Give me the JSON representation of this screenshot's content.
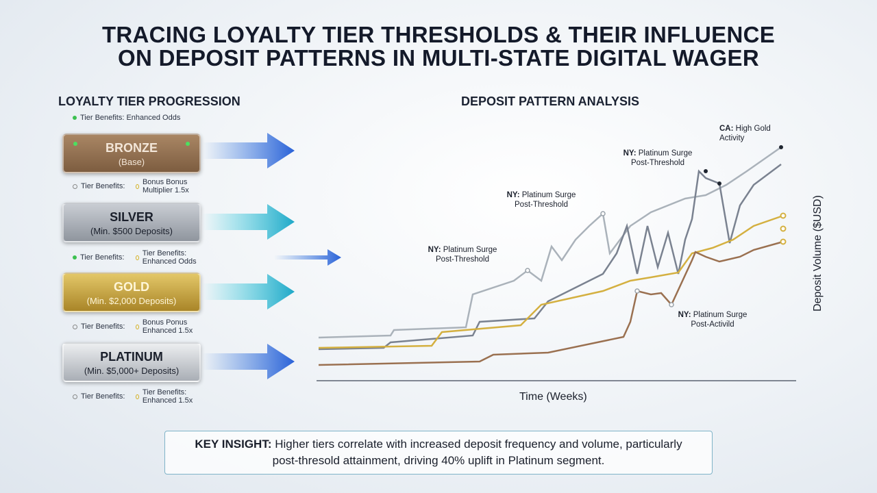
{
  "title": [
    "TRACING LOYALTY TIER THRESHOLDS & THEIR INFLUENCE",
    "ON DEPOSIT PATTERNS IN MULTI-STATE DIGITAL WAGER"
  ],
  "left": {
    "heading": "LOYALTY TIER PROGRESSION",
    "top_note": "Tier Benefits: Enhanced Odds",
    "tiers": [
      {
        "name": "BRONZE",
        "sub": "(Base)",
        "notes": [
          "Tier Benefits:",
          "Bonus Bonus Multiplier 1.5x"
        ]
      },
      {
        "name": "SILVER",
        "sub": "(Min. $500 Deposits)",
        "notes": [
          "Tier Benefits:",
          "Tier Benefits: Enhanced Odds"
        ]
      },
      {
        "name": "GOLD",
        "sub": "(Min. $2,000 Deposits)",
        "notes": [
          "Tier Benefits:",
          "Bonus Ponus Enhanced 1.5x"
        ]
      },
      {
        "name": "PLATINUM",
        "sub": "(Min. $5,000+ Deposits)",
        "notes": [
          "Tier Benefits:",
          "Tier Benefits: Enhanced 1.5x"
        ]
      }
    ]
  },
  "chart": {
    "heading": "DEPOSIT PATTERN ANALYSIS",
    "x_label": "Time (Weeks)",
    "y_label": "Deposit Volume ($USD)",
    "annotations": [
      {
        "state": "CA:",
        "text": "High Gold Activity"
      },
      {
        "state": "NY:",
        "text": "Platinum Surge Post-Threshold"
      },
      {
        "state": "NY:",
        "text": "Platinum Surge Post-Threshold"
      },
      {
        "state": "NY:",
        "text": "Platinum Surge Post-Threshold"
      },
      {
        "state": "NY:",
        "text": "Platinum Surge Post-Activild"
      }
    ]
  },
  "insight": {
    "label": "KEY INSIGHT:",
    "text": "Higher tiers correlate with increased deposit frequency and volume, particularly post-thresold attainment, driving 40% uplift in Platinum segment."
  }
}
